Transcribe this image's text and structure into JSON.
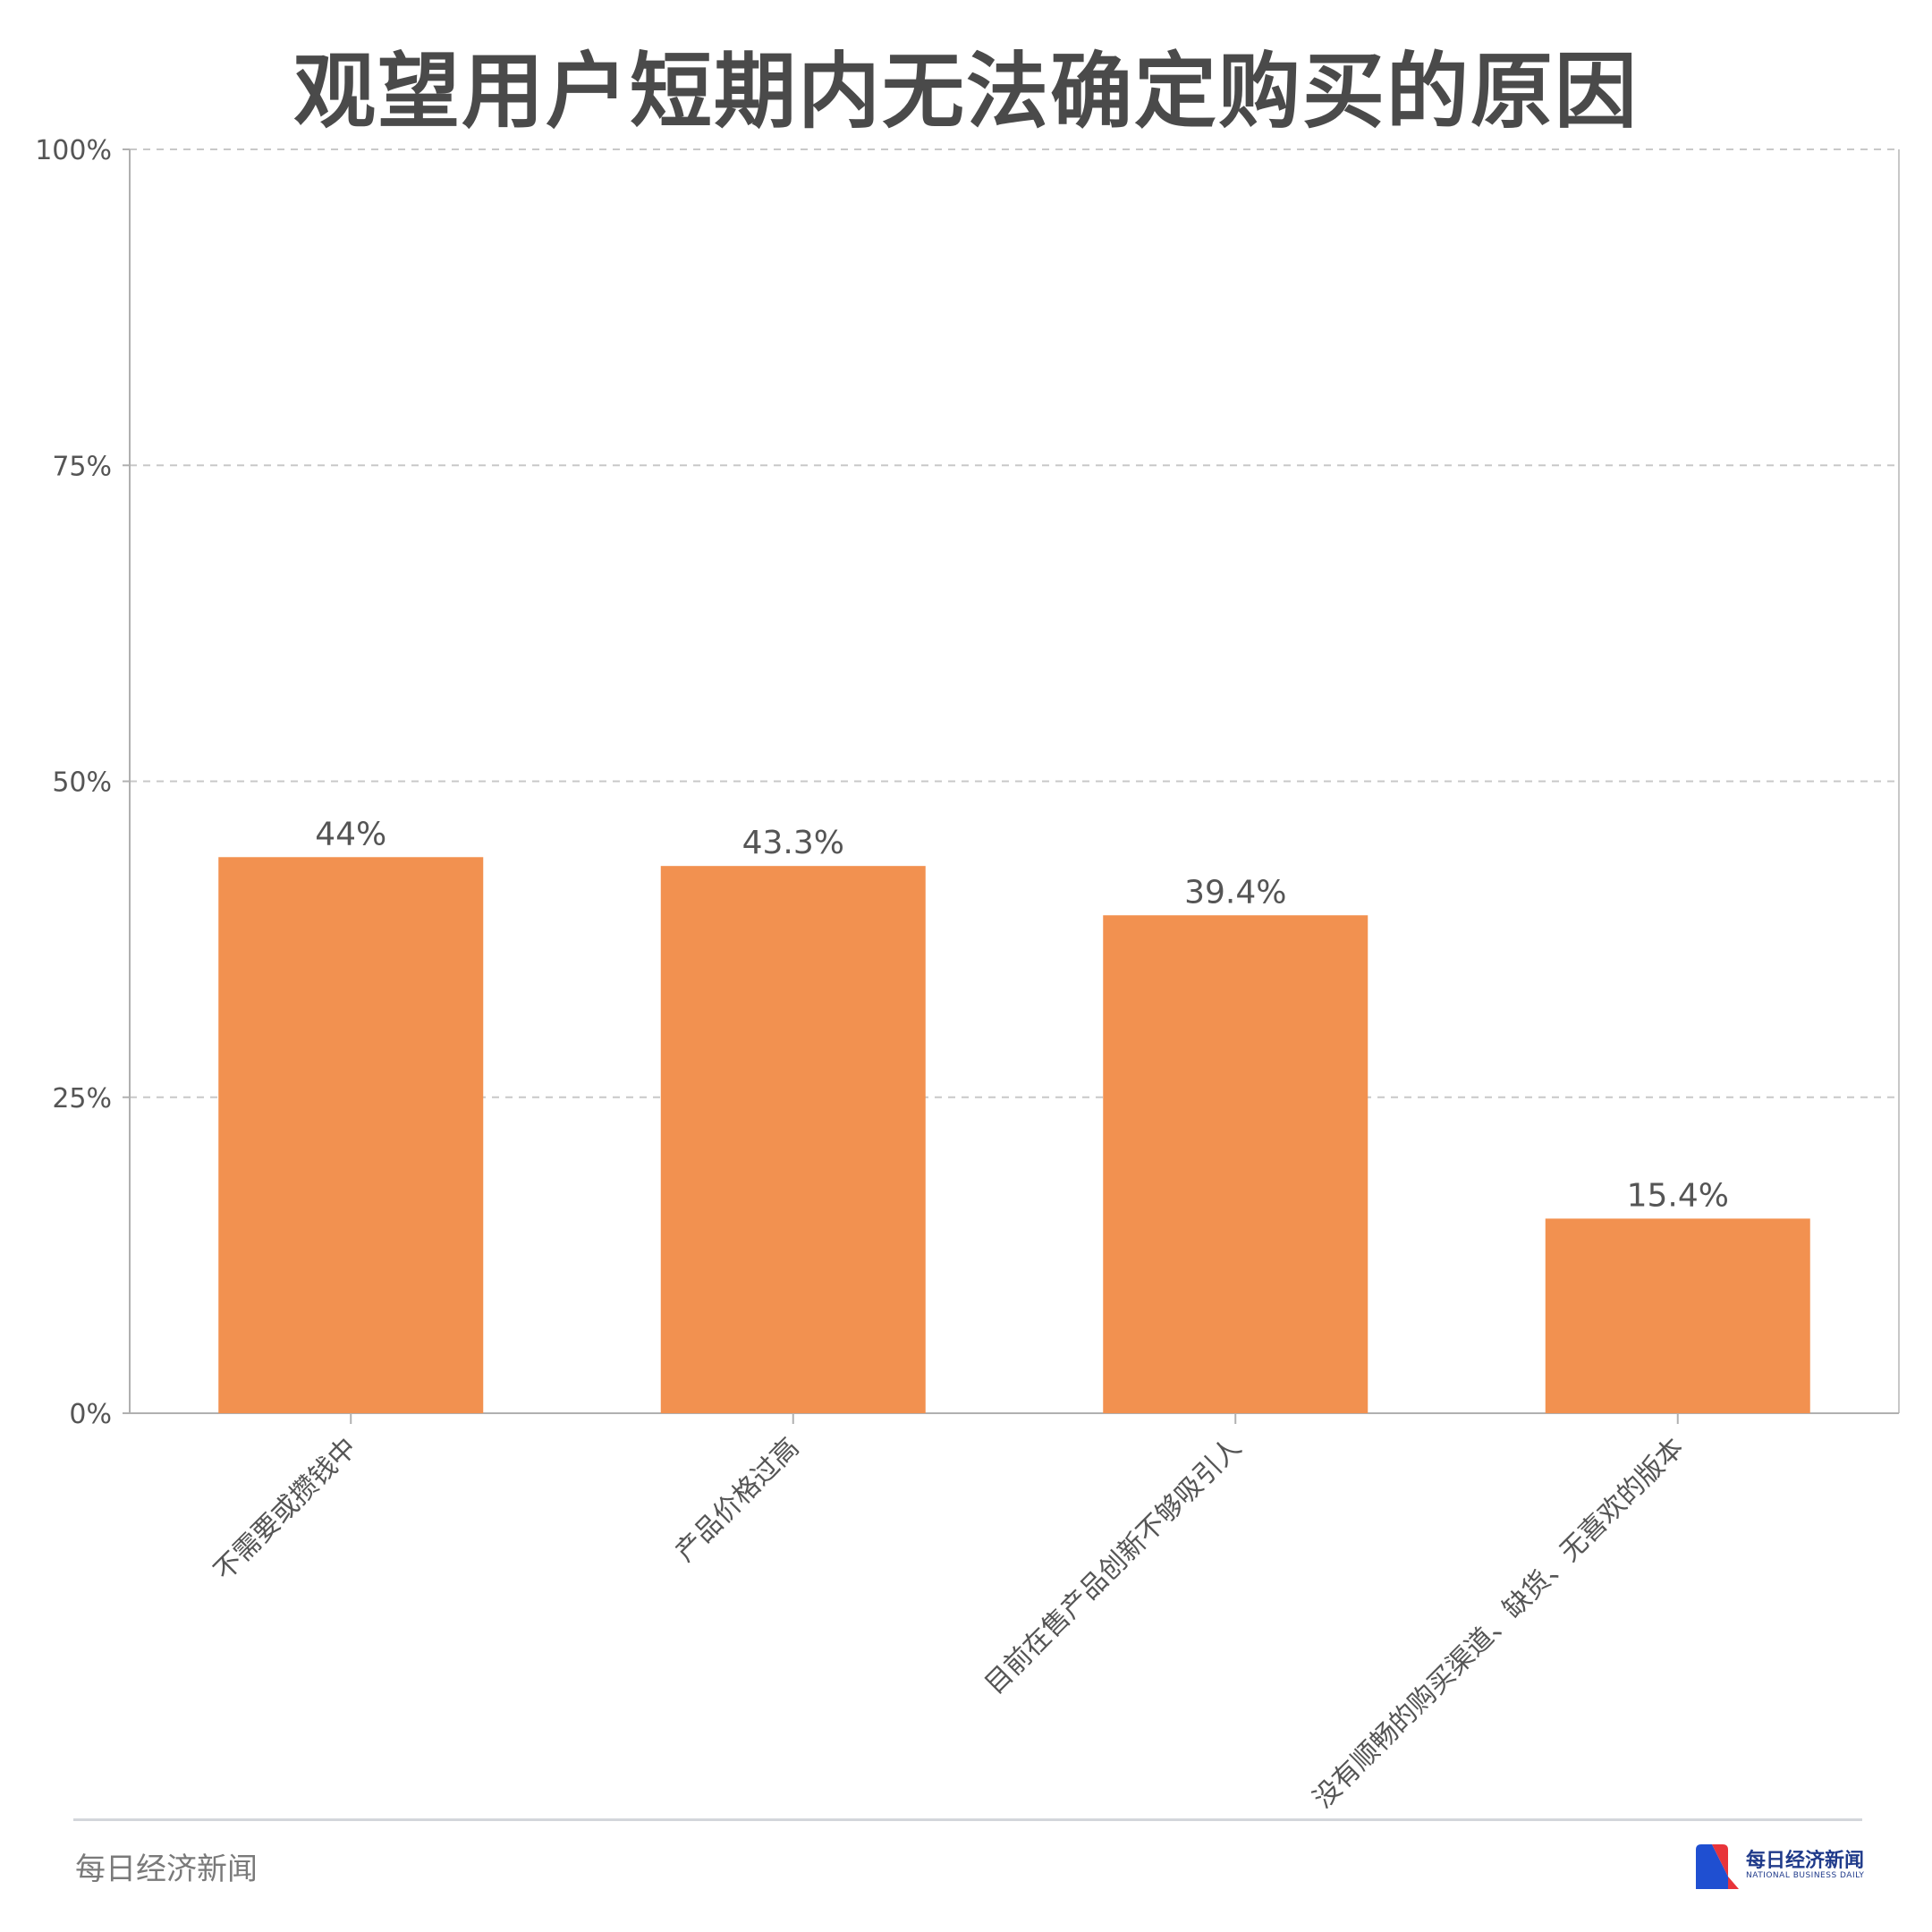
{
  "chart_data": {
    "type": "bar",
    "title": "观望用户短期内无法确定购买的原因",
    "categories": [
      "不需要或攒钱中",
      "产品价格过高",
      "目前在售产品创新不够吸引人",
      "没有顺畅的购买渠道、缺货、无喜欢的版本"
    ],
    "values": [
      44,
      43.3,
      39.4,
      15.4
    ],
    "value_labels": [
      "44%",
      "43.3%",
      "39.4%",
      "15.4%"
    ],
    "ylim": [
      0,
      100
    ],
    "yticks": [
      0,
      25,
      50,
      75,
      100
    ],
    "ytick_labels": [
      "0%",
      "25%",
      "50%",
      "75%",
      "100%"
    ],
    "xlabel": "",
    "ylabel": "",
    "grid": "horizontal dashed",
    "legend": "none",
    "bar_color": "#f29150"
  },
  "footer": {
    "source": "每日经济新闻",
    "logo_cn": "每日经济新闻",
    "logo_en": "NATIONAL BUSINESS DAILY",
    "logo_colors": [
      "#1f4fd1",
      "#e8343a"
    ]
  }
}
